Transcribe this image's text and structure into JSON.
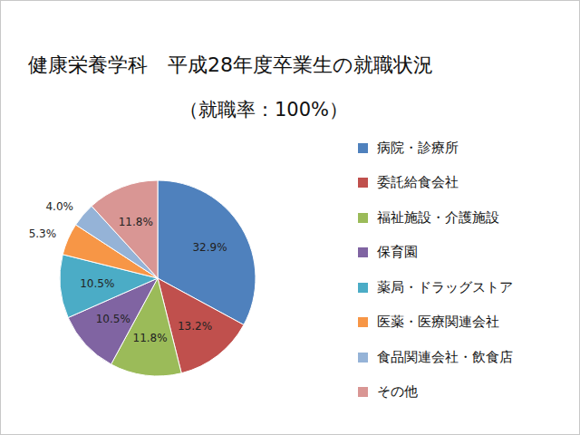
{
  "chart_data": {
    "type": "pie",
    "title": "健康栄養学科　平成28年度卒業生の就職状況",
    "subtitle": "（就職率：100%）",
    "categories": [
      "病院・診療所",
      "委託給食会社",
      "福祉施設・介護施設",
      "保育園",
      "薬局・ドラッグストア",
      "医薬・医療関連会社",
      "食品関連会社・飲食店",
      "その他"
    ],
    "values": [
      32.9,
      13.2,
      11.8,
      10.5,
      10.5,
      5.3,
      4.0,
      11.8
    ],
    "value_labels": [
      "32.9%",
      "13.2%",
      "11.8%",
      "10.5%",
      "10.5%",
      "5.3%",
      "4.0%",
      "11.8%"
    ],
    "colors": [
      "#4f81bd",
      "#c0504d",
      "#9bbb59",
      "#8064a2",
      "#4bacc6",
      "#f79646",
      "#95b3d7",
      "#d99694"
    ],
    "data_labels": true,
    "legend": "right"
  }
}
